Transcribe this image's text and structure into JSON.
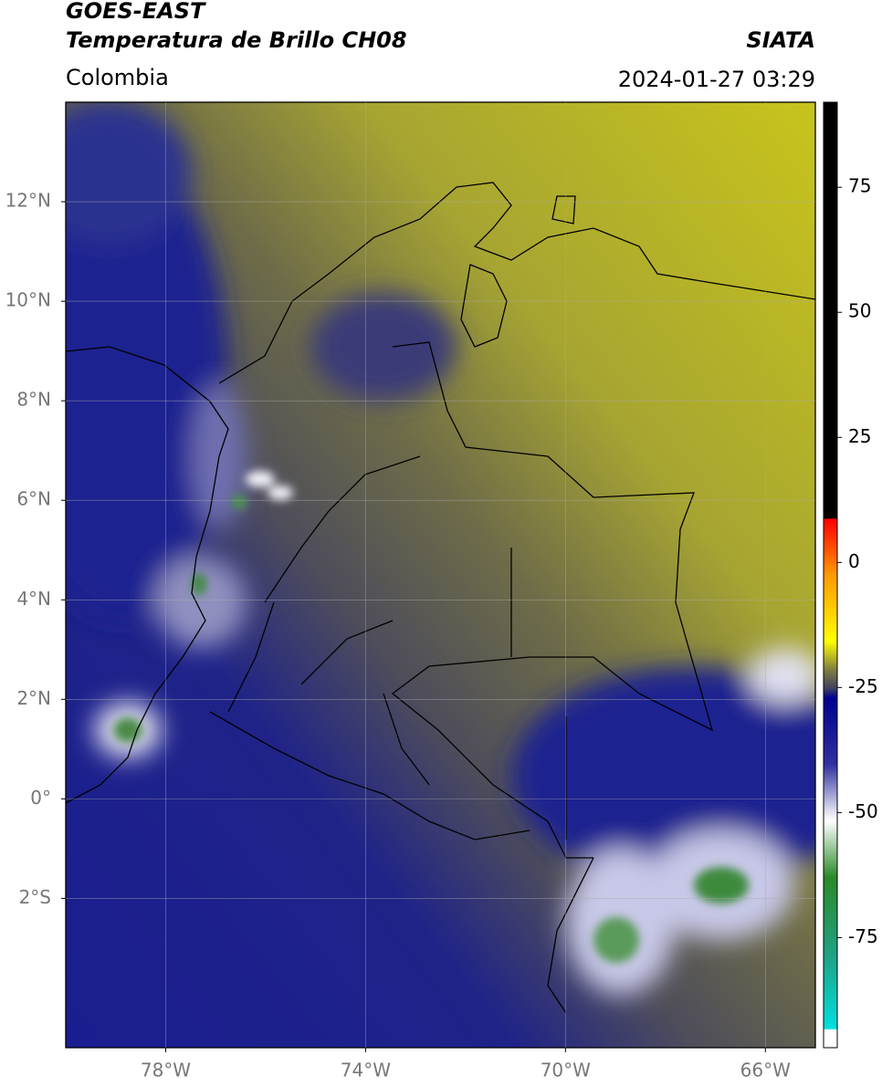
{
  "header": {
    "title": "GOES-EAST",
    "subtitle": "Temperatura de Brillo CH08",
    "source": "SIATA",
    "region": "Colombia",
    "timestamp": "2024-01-27 03:29"
  },
  "map": {
    "lon_range": [
      -80,
      -65
    ],
    "lat_range": [
      -5,
      14
    ],
    "lat_ticks": [
      {
        "value": 12,
        "label": "12°N"
      },
      {
        "value": 10,
        "label": "10°N"
      },
      {
        "value": 8,
        "label": "8°N"
      },
      {
        "value": 6,
        "label": "6°N"
      },
      {
        "value": 4,
        "label": "4°N"
      },
      {
        "value": 2,
        "label": "2°N"
      },
      {
        "value": 0,
        "label": "0°"
      },
      {
        "value": -2,
        "label": "2°S"
      }
    ],
    "lon_ticks": [
      {
        "value": -78,
        "label": "78°W"
      },
      {
        "value": -74,
        "label": "74°W"
      },
      {
        "value": -70,
        "label": "70°W"
      },
      {
        "value": -66,
        "label": "66°W"
      }
    ]
  },
  "colorbar": {
    "range": [
      -97,
      92
    ],
    "ticks": [
      75,
      50,
      25,
      0,
      -25,
      -50,
      -75
    ]
  }
}
